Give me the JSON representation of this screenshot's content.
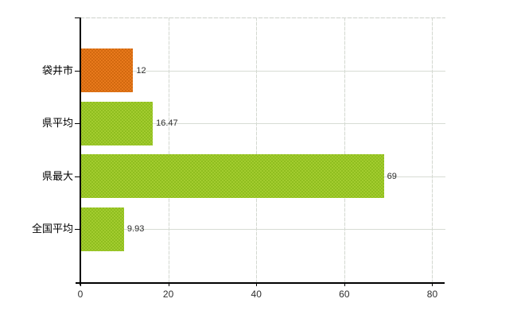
{
  "chart_data": {
    "type": "bar",
    "orientation": "horizontal",
    "title": "",
    "xlabel": "",
    "ylabel": "",
    "categories": [
      "袋井市",
      "県平均",
      "県最大",
      "全国平均"
    ],
    "values": [
      12,
      16.47,
      69,
      9.93
    ],
    "value_labels": [
      "12",
      "16.47",
      "69",
      "9.93"
    ],
    "bar_colors": [
      "#e8791c",
      "#a3cc2f",
      "#a3cc2f",
      "#a3cc2f"
    ],
    "bar_shade_colors": [
      "#d2690f",
      "#8fbe1f",
      "#8fbe1f",
      "#8fbe1f"
    ],
    "x_tick_values": [
      0,
      20,
      40,
      60,
      80
    ],
    "x_tick_labels": [
      "0",
      "20",
      "40",
      "60",
      "80"
    ],
    "xlim": [
      0,
      83
    ],
    "grid": true,
    "legend_position": "none"
  },
  "colors": {
    "background": "#ffffff",
    "axis": "#000000",
    "horizontal_gridline": "#d7dcd4",
    "vertical_gridline": "#d3d8d0",
    "top_border": "#cdd2cc",
    "value_label_text": "#2e2e2e",
    "category_label_text": "#000000",
    "tick_label_text": "#2e2e2e"
  }
}
